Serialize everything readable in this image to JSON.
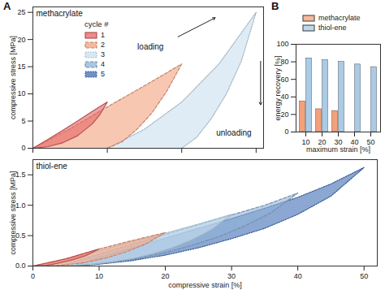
{
  "chart_data": [
    {
      "type": "area",
      "panel": "A",
      "title": "methacrylate",
      "ylabel": "compressive stress [MPa]",
      "xlim": [
        0,
        31
      ],
      "ylim": [
        0,
        26
      ],
      "xticks": [
        0,
        10,
        20,
        30
      ],
      "yticks": [
        0,
        5,
        10,
        15,
        20,
        25
      ],
      "tick_labels": "y",
      "legend": "top-left",
      "legend_title": "cycle #",
      "annotations": [
        {
          "text": "loading",
          "x": 15.8,
          "y": 18.6,
          "arrow": {
            "x1": 19.5,
            "y1": 20.5,
            "x2": 24.5,
            "y2": 24
          }
        },
        {
          "text": "unloading",
          "x": 27,
          "y": 2.8,
          "arrow": {
            "x1": 30.6,
            "y1": 16,
            "x2": 30.6,
            "y2": 8
          }
        }
      ],
      "series": [
        {
          "name": "1",
          "color": "#e46464",
          "line_style": "solid",
          "x": [
            0,
            2,
            4,
            6,
            8,
            10,
            9,
            8,
            6,
            4,
            2,
            0
          ],
          "y": [
            0,
            1.6,
            3.3,
            5,
            6.8,
            8.5,
            6.2,
            4.5,
            2.3,
            1,
            0.3,
            0
          ]
        },
        {
          "name": "2",
          "color": "#f2a27e",
          "line_style": "dashed",
          "x": [
            0,
            5,
            10,
            15,
            20,
            18,
            16,
            14,
            12,
            10,
            5,
            0
          ],
          "y": [
            0,
            3.6,
            7.6,
            11.5,
            15.5,
            10.5,
            6.5,
            3.5,
            1.2,
            0,
            0,
            0
          ]
        },
        {
          "name": "3",
          "color": "#c9e0f0",
          "line_style": "dotted",
          "x": [
            10,
            15,
            20,
            25,
            30,
            28,
            26,
            24,
            22,
            20,
            10
          ],
          "y": [
            0,
            3.5,
            8.5,
            15.5,
            25,
            16,
            10,
            5.5,
            2,
            0,
            0
          ]
        },
        {
          "name": "4",
          "color": "#8fb3d9",
          "line_style": "dashed",
          "x": [],
          "y": []
        },
        {
          "name": "5",
          "color": "#3f6db3",
          "line_style": "dotted",
          "x": [],
          "y": []
        }
      ]
    },
    {
      "type": "bar",
      "panel": "B",
      "xlabel": "maximum strain [%]",
      "ylabel": "energy recovery [%]",
      "categories": [
        10,
        20,
        30,
        40,
        50
      ],
      "ylim": [
        0,
        100
      ],
      "yticks": [
        0,
        20,
        40,
        60,
        80,
        100
      ],
      "legend": "top",
      "series": [
        {
          "name": "methacrylate",
          "color": "#f4a07a",
          "values": [
            35,
            26,
            24,
            null,
            null
          ]
        },
        {
          "name": "thiol-ene",
          "color": "#a9cbe6",
          "values": [
            84,
            82,
            80,
            77,
            74
          ]
        }
      ]
    },
    {
      "type": "area",
      "title": "thiol-ene",
      "xlabel": "compressive strain [%]",
      "ylabel": "compressive stress [MPa]",
      "xlim": [
        0,
        52
      ],
      "ylim": [
        0,
        1.75
      ],
      "xticks": [
        0,
        10,
        20,
        30,
        40,
        50
      ],
      "yticks": [
        {
          "value": 0,
          "label": "0.0"
        },
        0.5,
        {
          "value": 1,
          "label": "1.0"
        },
        1.5
      ],
      "series": [
        {
          "name": "1",
          "color": "#e46464",
          "line_style": "solid",
          "x": [
            0,
            5,
            10,
            8,
            6,
            4,
            2,
            0
          ],
          "y": [
            0,
            0.12,
            0.28,
            0.17,
            0.1,
            0.05,
            0.01,
            0
          ]
        },
        {
          "name": "2",
          "color": "#f2a27e",
          "line_style": "dashed",
          "x": [
            0,
            5,
            10,
            15,
            20,
            17,
            14,
            11,
            8,
            5,
            2,
            0
          ],
          "y": [
            0,
            0.12,
            0.28,
            0.42,
            0.55,
            0.36,
            0.23,
            0.13,
            0.06,
            0.02,
            0,
            0
          ]
        },
        {
          "name": "3",
          "color": "#c9e0f0",
          "line_style": "dotted",
          "x": [
            2,
            5,
            10,
            15,
            20,
            25,
            30,
            27,
            24,
            21,
            18,
            15,
            12,
            9,
            6,
            3,
            2
          ],
          "y": [
            0,
            0.08,
            0.25,
            0.4,
            0.54,
            0.69,
            0.85,
            0.6,
            0.43,
            0.3,
            0.2,
            0.12,
            0.07,
            0.03,
            0.01,
            0,
            0
          ]
        },
        {
          "name": "4",
          "color": "#8fb3d9",
          "line_style": "dashed",
          "x": [
            4,
            10,
            15,
            20,
            25,
            30,
            35,
            40,
            36,
            32,
            28,
            24,
            20,
            16,
            12,
            8,
            4
          ],
          "y": [
            0,
            0.2,
            0.36,
            0.52,
            0.68,
            0.84,
            1.0,
            1.2,
            0.88,
            0.66,
            0.48,
            0.34,
            0.22,
            0.13,
            0.06,
            0.02,
            0
          ]
        },
        {
          "name": "5",
          "color": "#3f6db3",
          "line_style": "dotted",
          "x": [
            6,
            10,
            15,
            20,
            25,
            30,
            35,
            40,
            45,
            50,
            45,
            40,
            35,
            30,
            25,
            20,
            15,
            10,
            6
          ],
          "y": [
            0,
            0.14,
            0.3,
            0.46,
            0.62,
            0.78,
            0.95,
            1.13,
            1.35,
            1.62,
            1.15,
            0.85,
            0.62,
            0.45,
            0.3,
            0.18,
            0.09,
            0.03,
            0
          ]
        }
      ]
    }
  ]
}
